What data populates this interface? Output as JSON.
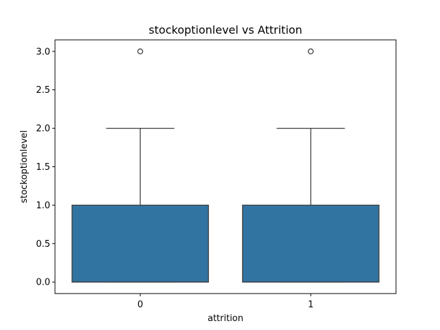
{
  "chart_data": {
    "type": "box",
    "title": "stockoptionlevel vs Attrition",
    "xlabel": "attrition",
    "ylabel": "stockoptionlevel",
    "categories": [
      "0",
      "1"
    ],
    "boxes": [
      {
        "category": "0",
        "whisker_low": 0.0,
        "q1": 0.0,
        "median": 0.0,
        "q3": 1.0,
        "whisker_high": 2.0,
        "outliers": [
          3.0
        ]
      },
      {
        "category": "1",
        "whisker_low": 0.0,
        "q1": 0.0,
        "median": 0.0,
        "q3": 1.0,
        "whisker_high": 2.0,
        "outliers": [
          3.0
        ]
      }
    ],
    "ylim": [
      -0.15,
      3.15
    ],
    "yticks": [
      0.0,
      0.5,
      1.0,
      1.5,
      2.0,
      2.5,
      3.0
    ],
    "ytick_labels": [
      "0.0",
      "0.5",
      "1.0",
      "1.5",
      "2.0",
      "2.5",
      "3.0"
    ],
    "grid": false,
    "box_color": "#3274a1",
    "line_color": "#3d3d3d"
  }
}
